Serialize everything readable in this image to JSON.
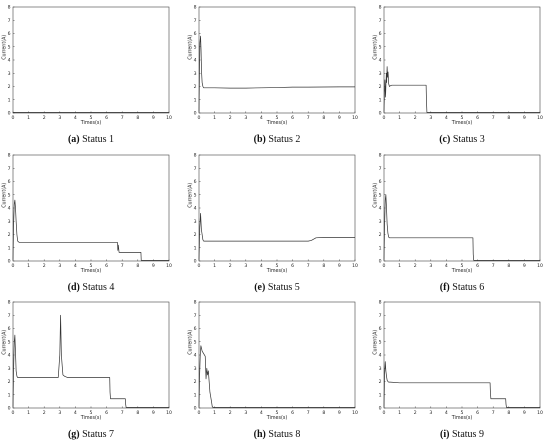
{
  "chart_data": [
    {
      "type": "line",
      "caption_label": "(a)",
      "caption_text": "Status 1",
      "xlabel": "Times(s)",
      "ylabel": "Current(A)",
      "xlim": [
        0,
        10
      ],
      "ylim": [
        0,
        8
      ],
      "xticks": [
        0,
        1,
        2,
        3,
        4,
        5,
        6,
        7,
        8,
        9,
        10
      ],
      "yticks": [
        0,
        1,
        2,
        3,
        4,
        5,
        6,
        7,
        8
      ],
      "series": [
        {
          "x": [
            0,
            10
          ],
          "y": [
            0.05,
            0.05
          ]
        }
      ]
    },
    {
      "type": "line",
      "caption_label": "(b)",
      "caption_text": "Status 2",
      "xlabel": "Times(s)",
      "ylabel": "Current(A)",
      "xlim": [
        0,
        10
      ],
      "ylim": [
        0,
        8
      ],
      "xticks": [
        0,
        1,
        2,
        3,
        4,
        5,
        6,
        7,
        8,
        9,
        10
      ],
      "yticks": [
        0,
        1,
        2,
        3,
        4,
        5,
        6,
        7,
        8
      ],
      "series": [
        {
          "x": [
            0,
            0.03,
            0.06,
            0.1,
            0.13,
            0.16,
            0.2,
            0.25,
            0.3,
            1,
            2,
            3,
            4,
            5,
            6,
            7,
            8,
            9,
            10
          ],
          "y": [
            0.1,
            3.0,
            5.3,
            5.8,
            4.8,
            3.2,
            2.3,
            2.0,
            1.9,
            1.9,
            1.88,
            1.88,
            1.9,
            1.92,
            1.95,
            1.95,
            1.96,
            1.97,
            1.97
          ]
        }
      ]
    },
    {
      "type": "line",
      "caption_label": "(c)",
      "caption_text": "Status 3",
      "xlabel": "Times(s)",
      "ylabel": "Current(A)",
      "xlim": [
        0,
        10
      ],
      "ylim": [
        0,
        8
      ],
      "xticks": [
        0,
        1,
        2,
        3,
        4,
        5,
        6,
        7,
        8,
        9,
        10
      ],
      "yticks": [
        0,
        1,
        2,
        3,
        4,
        5,
        6,
        7,
        8
      ],
      "series": [
        {
          "x": [
            0,
            0.03,
            0.06,
            0.08,
            0.1,
            0.12,
            0.15,
            0.17,
            0.2,
            0.23,
            0.26,
            0.3,
            0.35,
            0.4,
            0.5,
            1,
            2,
            2.7,
            2.72,
            2.75,
            3,
            10
          ],
          "y": [
            0.1,
            1.5,
            2.5,
            1.7,
            1.2,
            2.0,
            3.0,
            2.3,
            3.5,
            2.7,
            3.1,
            2.2,
            2.0,
            2.05,
            2.1,
            2.1,
            2.1,
            2.1,
            1.0,
            0.05,
            0.05,
            0.05
          ]
        }
      ]
    },
    {
      "type": "line",
      "caption_label": "(d)",
      "caption_text": "Status 4",
      "xlabel": "Times(s)",
      "ylabel": "Current(A)",
      "xlim": [
        0,
        10
      ],
      "ylim": [
        0,
        8
      ],
      "xticks": [
        0,
        1,
        2,
        3,
        4,
        5,
        6,
        7,
        8,
        9,
        10
      ],
      "yticks": [
        0,
        1,
        2,
        3,
        4,
        5,
        6,
        7,
        8
      ],
      "series": [
        {
          "x": [
            0,
            0.04,
            0.08,
            0.12,
            0.16,
            0.2,
            0.25,
            0.3,
            0.35,
            0.4,
            0.5,
            1,
            3,
            5,
            6.7,
            6.72,
            6.75,
            6.8,
            7.5,
            8.2,
            8.22,
            10
          ],
          "y": [
            0.1,
            2.8,
            4.3,
            4.6,
            4.0,
            3.0,
            2.0,
            1.5,
            1.45,
            1.4,
            1.4,
            1.4,
            1.4,
            1.4,
            1.4,
            0.8,
            1.2,
            0.65,
            0.65,
            0.65,
            0.05,
            0.05
          ]
        }
      ]
    },
    {
      "type": "line",
      "caption_label": "(e)",
      "caption_text": "Status 5",
      "xlabel": "Times(s)",
      "ylabel": "Current(A)",
      "xlim": [
        0,
        10
      ],
      "ylim": [
        0,
        8
      ],
      "xticks": [
        0,
        1,
        2,
        3,
        4,
        5,
        6,
        7,
        8,
        9,
        10
      ],
      "yticks": [
        0,
        1,
        2,
        3,
        4,
        5,
        6,
        7,
        8
      ],
      "series": [
        {
          "x": [
            0,
            0.05,
            0.1,
            0.15,
            0.2,
            0.25,
            0.3,
            1,
            3,
            5,
            7,
            7.2,
            7.5,
            8,
            10
          ],
          "y": [
            0.1,
            2.5,
            3.6,
            2.4,
            2.0,
            1.6,
            1.5,
            1.5,
            1.5,
            1.5,
            1.5,
            1.55,
            1.75,
            1.78,
            1.78
          ]
        }
      ]
    },
    {
      "type": "line",
      "caption_label": "(f)",
      "caption_text": "Status 6",
      "xlabel": "Times(s)",
      "ylabel": "Current(A)",
      "xlim": [
        0,
        10
      ],
      "ylim": [
        0,
        8
      ],
      "xticks": [
        0,
        1,
        2,
        3,
        4,
        5,
        6,
        7,
        8,
        9,
        10
      ],
      "yticks": [
        0,
        1,
        2,
        3,
        4,
        5,
        6,
        7,
        8
      ],
      "series": [
        {
          "x": [
            0,
            0.04,
            0.08,
            0.12,
            0.16,
            0.2,
            0.25,
            0.3,
            0.35,
            0.4,
            1,
            3,
            5,
            5.7,
            5.72,
            5.75,
            10
          ],
          "y": [
            0.1,
            2.8,
            4.6,
            5.0,
            4.0,
            2.8,
            2.1,
            1.8,
            1.75,
            1.75,
            1.75,
            1.75,
            1.75,
            1.75,
            0.5,
            0.05,
            0.05
          ]
        }
      ]
    },
    {
      "type": "line",
      "caption_label": "(g)",
      "caption_text": "Status 7",
      "xlabel": "Times(s)",
      "ylabel": "Current(A)",
      "xlim": [
        0,
        10
      ],
      "ylim": [
        0,
        8
      ],
      "xticks": [
        0,
        1,
        2,
        3,
        4,
        5,
        6,
        7,
        8,
        9,
        10
      ],
      "yticks": [
        0,
        1,
        2,
        3,
        4,
        5,
        6,
        7,
        8
      ],
      "series": [
        {
          "x": [
            0,
            0.04,
            0.08,
            0.12,
            0.16,
            0.2,
            0.25,
            0.3,
            0.4,
            1,
            2,
            2.9,
            3.0,
            3.05,
            3.1,
            3.2,
            3.3,
            3.5,
            4,
            5,
            6,
            6.2,
            6.22,
            6.25,
            7,
            7.2,
            7.22,
            7.25,
            10
          ],
          "y": [
            0.1,
            3.0,
            5.0,
            5.5,
            4.2,
            2.8,
            2.4,
            2.3,
            2.3,
            2.3,
            2.3,
            2.3,
            4.0,
            7.0,
            4.0,
            2.5,
            2.4,
            2.3,
            2.3,
            2.3,
            2.3,
            2.3,
            1.2,
            0.7,
            0.7,
            0.7,
            0.3,
            0.05,
            0.05
          ]
        }
      ]
    },
    {
      "type": "line",
      "caption_label": "(h)",
      "caption_text": "Status 8",
      "xlabel": "Times(s)",
      "ylabel": "Current(A)",
      "xlim": [
        0,
        10
      ],
      "ylim": [
        0,
        8
      ],
      "xticks": [
        0,
        1,
        2,
        3,
        4,
        5,
        6,
        7,
        8,
        9,
        10
      ],
      "yticks": [
        0,
        1,
        2,
        3,
        4,
        5,
        6,
        7,
        8
      ],
      "series": [
        {
          "x": [
            0,
            0.04,
            0.08,
            0.12,
            0.16,
            0.2,
            0.3,
            0.4,
            0.45,
            0.5,
            0.55,
            0.6,
            0.65,
            0.7,
            0.8,
            0.85,
            0.9,
            10
          ],
          "y": [
            0.1,
            2.5,
            4.0,
            4.7,
            4.5,
            4.3,
            4.1,
            3.9,
            2.2,
            3.0,
            2.5,
            2.8,
            2.0,
            1.2,
            0.5,
            0.1,
            0.05,
            0.05
          ]
        }
      ]
    },
    {
      "type": "line",
      "caption_label": "(i)",
      "caption_text": "Status 9",
      "xlabel": "Times(s)",
      "ylabel": "Current(A)",
      "xlim": [
        0,
        10
      ],
      "ylim": [
        0,
        8
      ],
      "xticks": [
        0,
        1,
        2,
        3,
        4,
        5,
        6,
        7,
        8,
        9,
        10
      ],
      "yticks": [
        0,
        1,
        2,
        3,
        4,
        5,
        6,
        7,
        8
      ],
      "series": [
        {
          "x": [
            0,
            0.04,
            0.08,
            0.12,
            0.16,
            0.2,
            0.25,
            0.3,
            0.4,
            1,
            3,
            5,
            6.8,
            6.82,
            6.85,
            7.8,
            7.82,
            7.85,
            10
          ],
          "y": [
            0.1,
            2.6,
            3.5,
            2.8,
            2.4,
            2.1,
            2.0,
            1.95,
            1.95,
            1.9,
            1.9,
            1.9,
            1.9,
            1.2,
            0.7,
            0.7,
            0.3,
            0.05,
            0.05
          ]
        }
      ]
    }
  ]
}
